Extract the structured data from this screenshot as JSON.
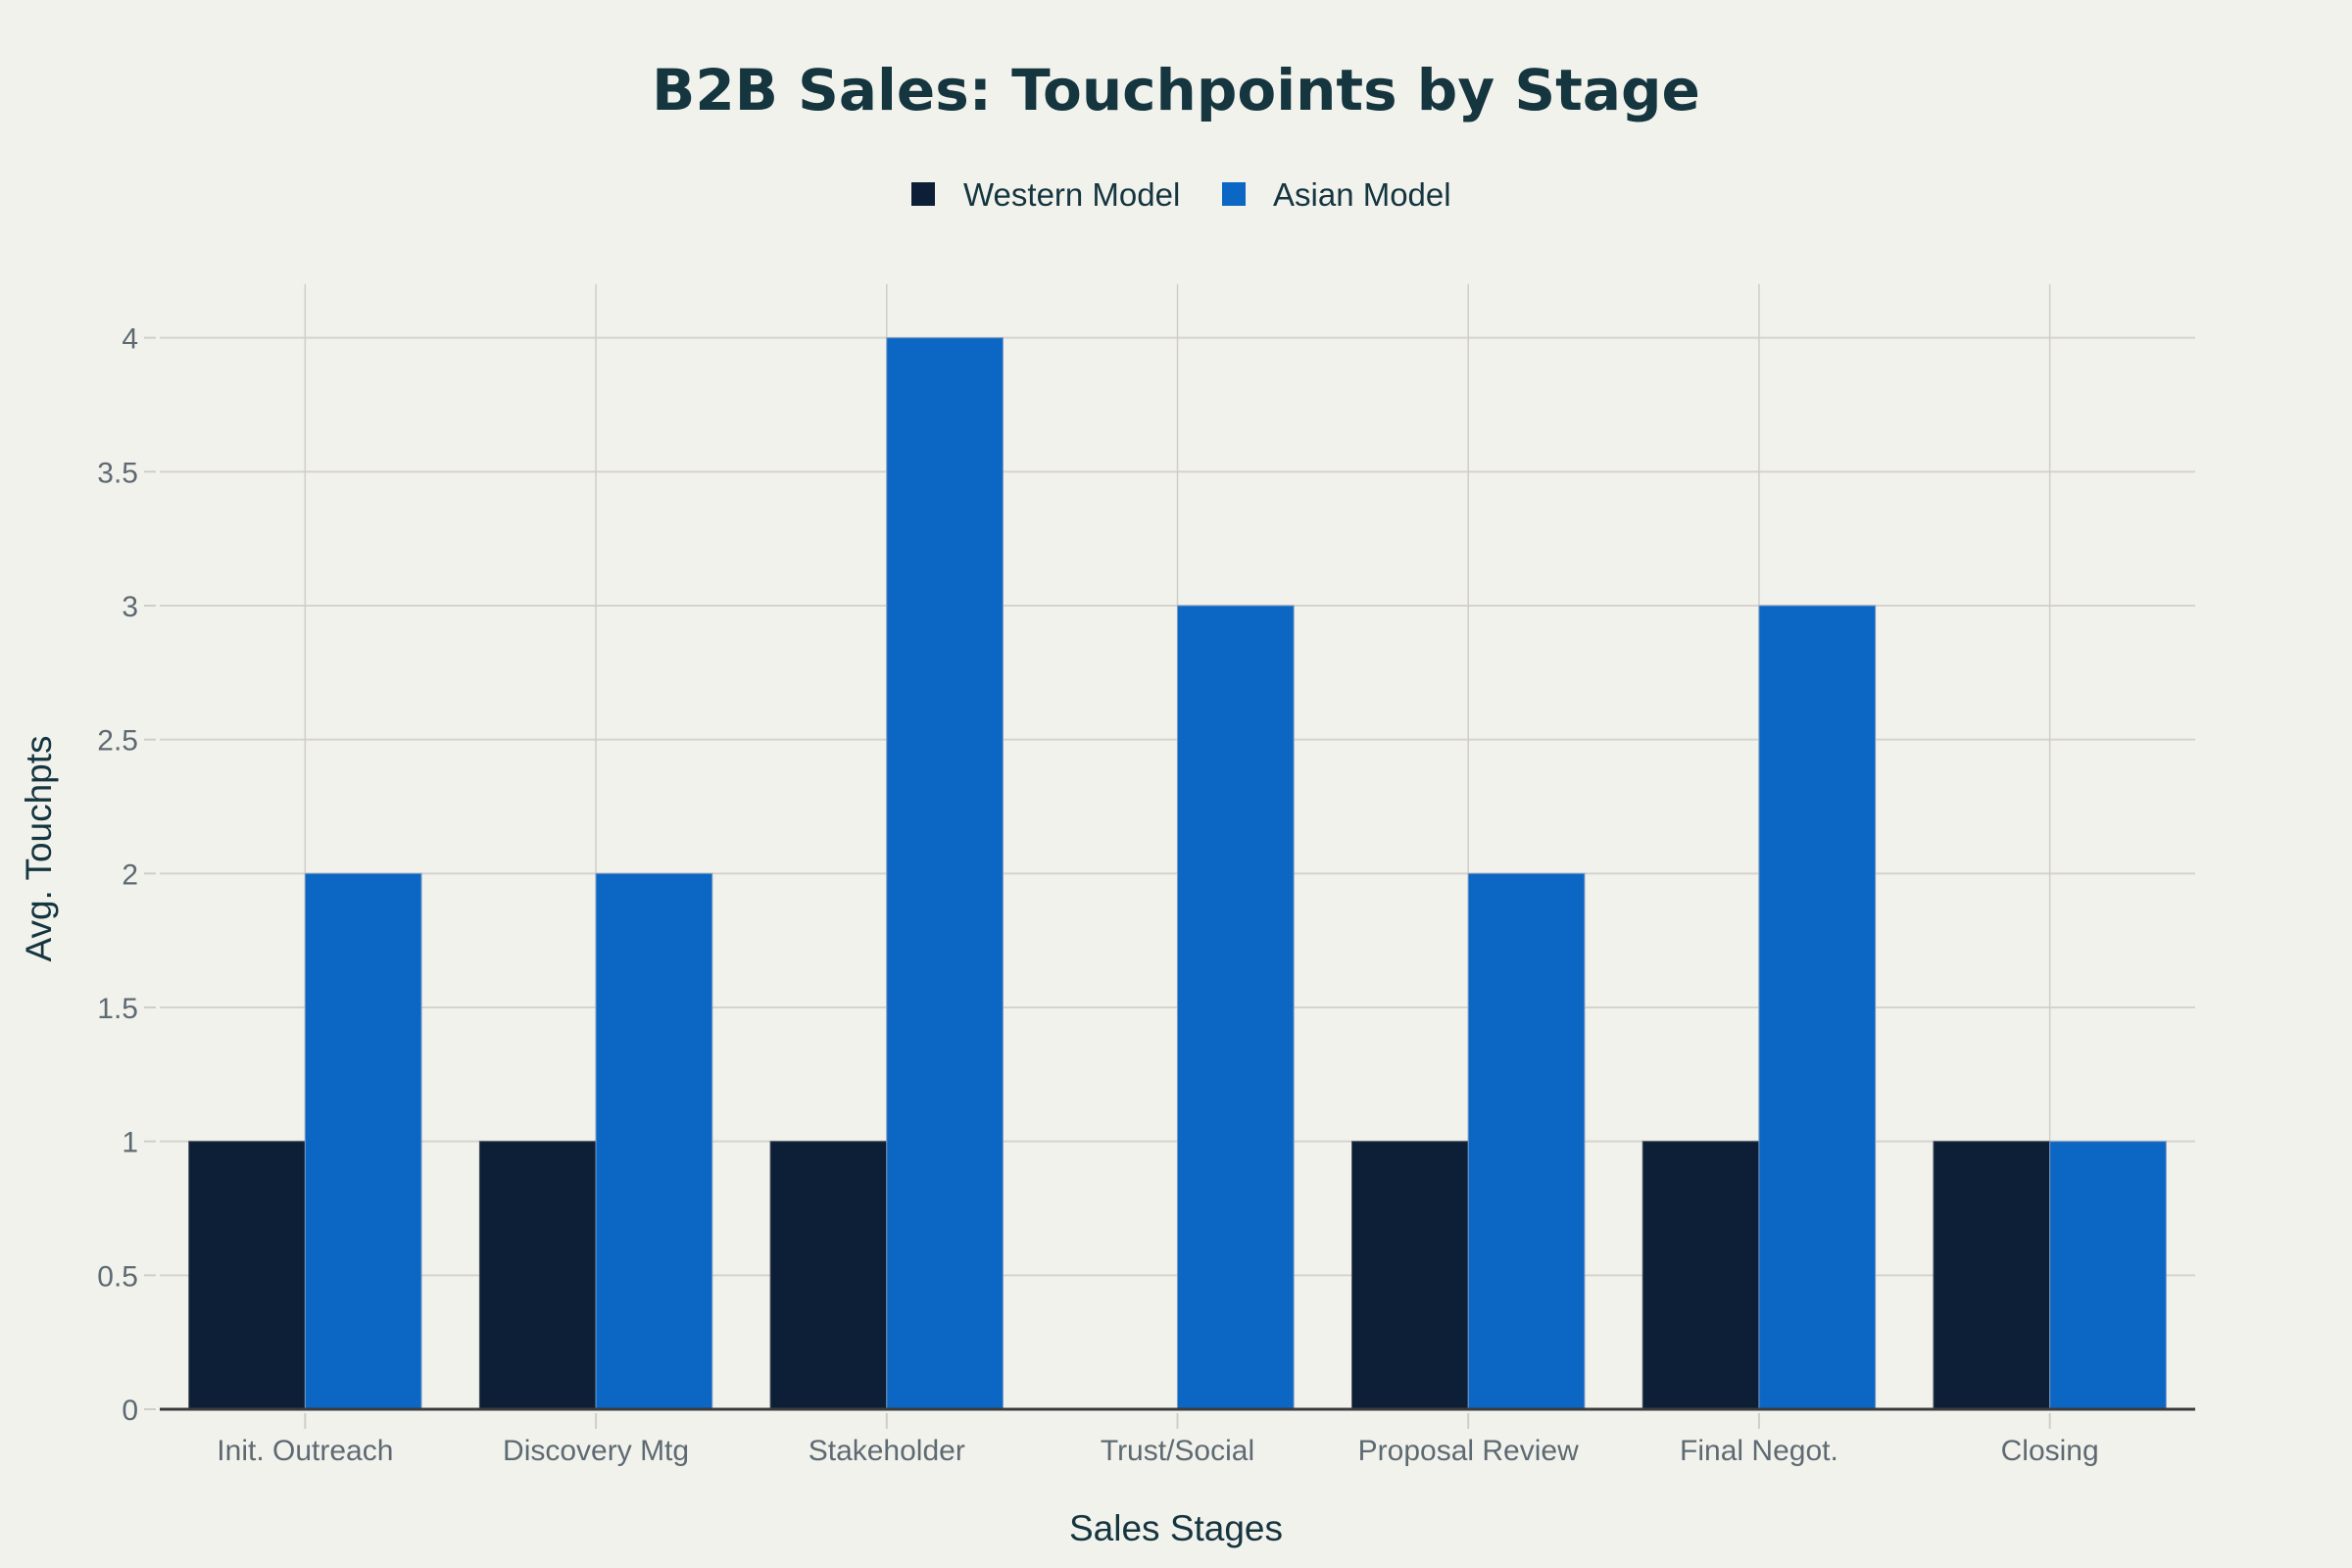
{
  "chart_data": {
    "type": "bar",
    "title": "B2B Sales: Touchpoints by Stage",
    "xlabel": "Sales Stages",
    "ylabel": "Avg. Touchpts",
    "categories": [
      "Init. Outreach",
      "Discovery Mtg",
      "Stakeholder",
      "Trust/Social",
      "Proposal Review",
      "Final Negot.",
      "Closing"
    ],
    "series": [
      {
        "name": "Western Model",
        "color": "#0d1f36",
        "values": [
          1,
          1,
          1,
          0,
          1,
          1,
          1
        ]
      },
      {
        "name": "Asian Model",
        "color": "#0c66c3",
        "values": [
          2,
          2,
          4,
          3,
          2,
          3,
          1
        ]
      }
    ],
    "ylim": [
      0,
      4.2
    ],
    "yticks": [
      0,
      0.5,
      1,
      1.5,
      2,
      2.5,
      3,
      3.5,
      4
    ],
    "ytick_labels": [
      "0",
      "0.5",
      "1",
      "1.5",
      "2",
      "2.5",
      "3",
      "3.5",
      "4"
    ],
    "grid": true,
    "legend_position": "top-center",
    "background": "#f2f2ed"
  }
}
